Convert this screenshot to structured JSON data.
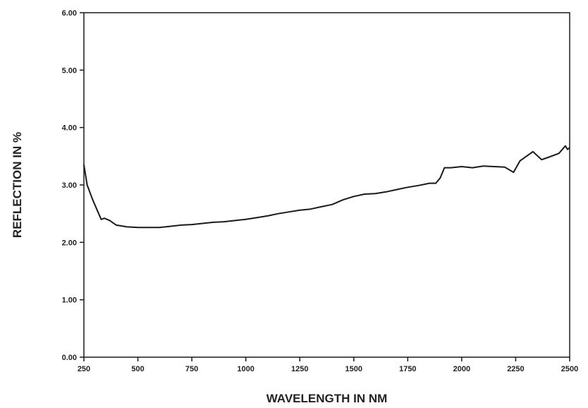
{
  "chart_data": {
    "type": "line",
    "title": "",
    "xlabel": "WAVELENGTH IN NM",
    "ylabel": "REFLECTION IN %",
    "xlim": [
      250,
      2500
    ],
    "ylim": [
      0,
      6
    ],
    "x_ticks": [
      250,
      500,
      750,
      1000,
      1250,
      1500,
      1750,
      2000,
      2250,
      2500
    ],
    "x_tick_labels": [
      "250",
      "500",
      "750",
      "1000",
      "1250",
      "1500",
      "1750",
      "2000",
      "2250",
      "2500"
    ],
    "y_ticks": [
      0,
      1,
      2,
      3,
      4,
      5,
      6
    ],
    "y_tick_labels": [
      "0.00",
      "1.00",
      "2.00",
      "3.00",
      "4.00",
      "5.00",
      "6.00"
    ],
    "grid": false,
    "legend": "none",
    "line_color": "#1a1a1a",
    "series": [
      {
        "x": [
          250,
          265,
          290,
          330,
          345,
          370,
          400,
          450,
          500,
          550,
          600,
          650,
          700,
          750,
          800,
          850,
          900,
          950,
          1000,
          1050,
          1100,
          1150,
          1200,
          1250,
          1300,
          1350,
          1400,
          1450,
          1500,
          1550,
          1600,
          1650,
          1700,
          1750,
          1800,
          1850,
          1880,
          1900,
          1920,
          1950,
          2000,
          2050,
          2100,
          2150,
          2200,
          2240,
          2270,
          2330,
          2370,
          2400,
          2450,
          2480,
          2490,
          2500
        ],
        "y": [
          3.35,
          3.0,
          2.75,
          2.4,
          2.42,
          2.38,
          2.3,
          2.27,
          2.26,
          2.26,
          2.26,
          2.28,
          2.3,
          2.31,
          2.33,
          2.35,
          2.36,
          2.38,
          2.4,
          2.43,
          2.46,
          2.5,
          2.53,
          2.56,
          2.58,
          2.62,
          2.66,
          2.74,
          2.8,
          2.84,
          2.85,
          2.88,
          2.92,
          2.96,
          2.99,
          3.03,
          3.03,
          3.12,
          3.3,
          3.3,
          3.32,
          3.3,
          3.33,
          3.32,
          3.31,
          3.22,
          3.42,
          3.58,
          3.44,
          3.48,
          3.55,
          3.68,
          3.62,
          3.65
        ]
      }
    ]
  }
}
